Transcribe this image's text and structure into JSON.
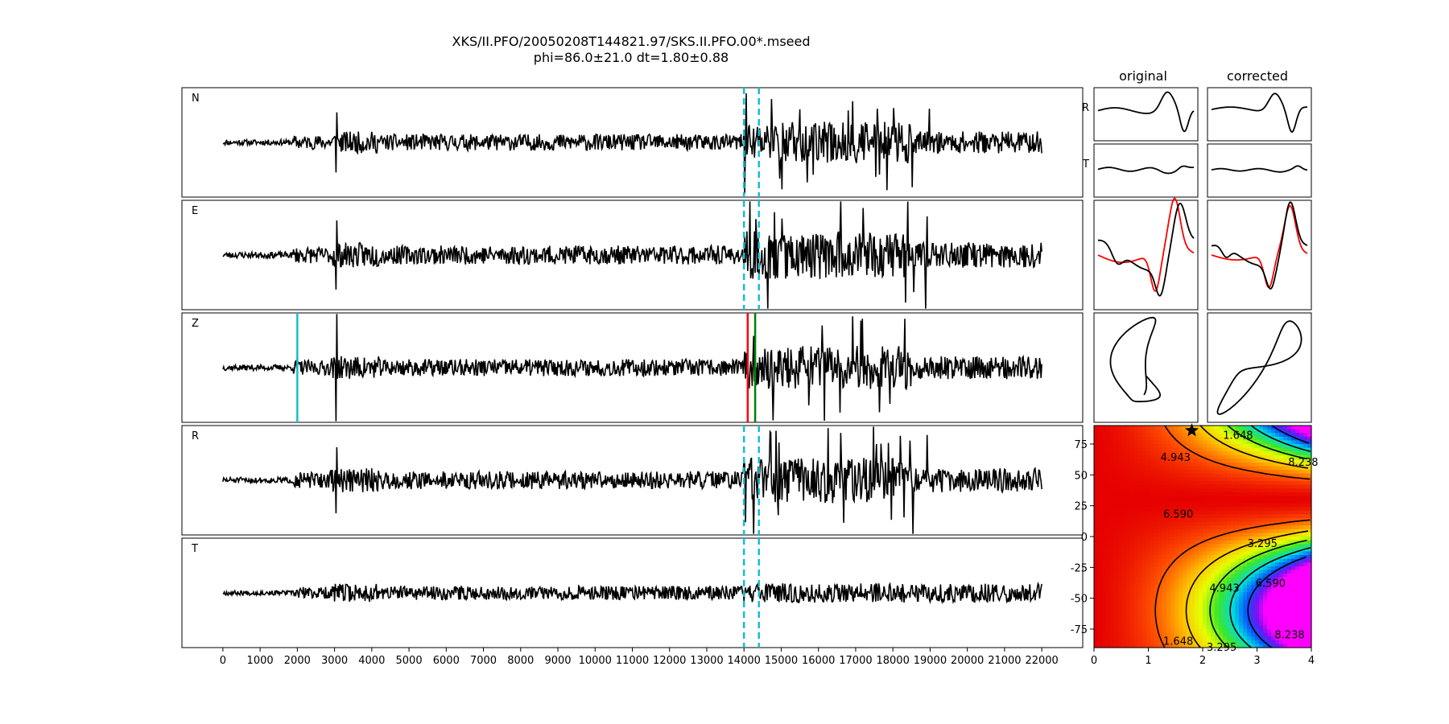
{
  "chart_data": {
    "type": "line",
    "title": "XKS/II.PFO/20050208T144821.97/SKS.II.PFO.00*.mseed",
    "subtitle": "phi=86.0±21.0 dt=1.80±0.88",
    "traces": {
      "labels": [
        "N",
        "E",
        "Z",
        "R",
        "T"
      ],
      "x_ticks": [
        0,
        1000,
        2000,
        3000,
        4000,
        5000,
        6000,
        7000,
        8000,
        9000,
        10000,
        11000,
        12000,
        13000,
        14000,
        15000,
        16000,
        17000,
        18000,
        19000,
        20000,
        21000,
        22000
      ],
      "xlim": [
        -1100,
        23100
      ],
      "x_start": 0,
      "x_end": 22000,
      "window_x": [
        14000,
        14400
      ],
      "z_markers": [
        {
          "x": 2000,
          "color": "#17becf"
        },
        {
          "x": 14100,
          "color": "#ff0000"
        },
        {
          "x": 14300,
          "color": "#008000"
        }
      ],
      "colors": {
        "trace": "#000000",
        "window": "#17becf"
      }
    },
    "particle_motion": {
      "columns": [
        "original",
        "corrected"
      ],
      "row_labels": [
        "R",
        "T"
      ]
    },
    "error_surface": {
      "type": "heatmap",
      "xlim": [
        0,
        4
      ],
      "ylim": [
        -90,
        90
      ],
      "x_ticks": [
        0,
        1,
        2,
        3,
        4
      ],
      "y_ticks": [
        75,
        50,
        25,
        0,
        -25,
        -50,
        -75
      ],
      "contour_levels": [
        "1.648",
        "3.295",
        "4.943",
        "6.590",
        "8.238"
      ],
      "best": {
        "dt": 1.8,
        "phi": 86.0
      }
    }
  }
}
